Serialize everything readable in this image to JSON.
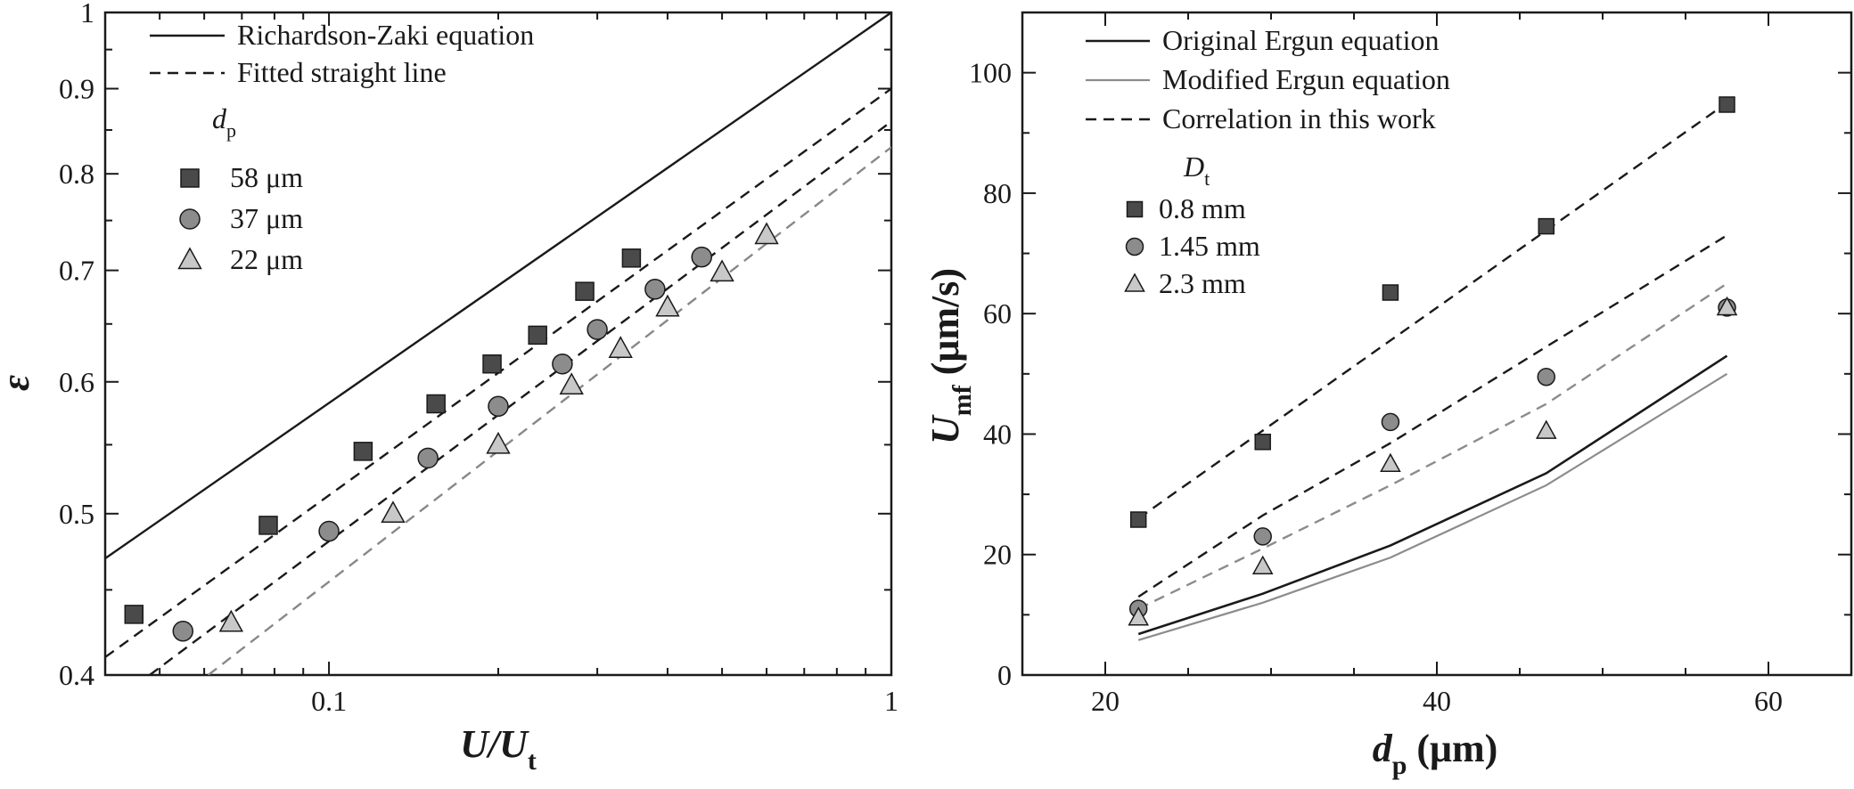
{
  "chart_data": [
    {
      "type": "scatter",
      "xscale": "log",
      "yscale": "log",
      "xlim": [
        0.04,
        1
      ],
      "ylim": [
        0.4,
        1
      ],
      "xticks": [
        "0.1",
        "1"
      ],
      "yticks": [
        "0.4",
        "0.5",
        "0.6",
        "0.7",
        "0.8",
        "0.9",
        "1"
      ],
      "xlabel": {
        "main": "U/U",
        "sub": "t"
      },
      "ylabel": "ε",
      "legend_position": "top-left",
      "legend_header": {
        "main": "d",
        "sub": "p"
      },
      "lines": [
        {
          "name": "Richardson-Zaki equation",
          "style": "solid",
          "color": "#1a1a1a",
          "x": [
            0.04,
            1
          ],
          "y": [
            0.47,
            1.0
          ]
        },
        {
          "name": "Fitted straight line",
          "style": "dashed",
          "color": "#1a1a1a",
          "x": [
            0.04,
            1
          ],
          "y": [
            0.41,
            0.9
          ]
        },
        {
          "name": "",
          "style": "dashed",
          "color": "#1a1a1a",
          "x": [
            0.048,
            1
          ],
          "y": [
            0.4,
            0.86
          ]
        },
        {
          "name": "",
          "style": "dashed",
          "color": "#888888",
          "x": [
            0.061,
            1
          ],
          "y": [
            0.4,
            0.83
          ]
        }
      ],
      "series": [
        {
          "name": "58 μm",
          "marker": "square",
          "fill": "#4a4a4a",
          "x": [
            0.045,
            0.078,
            0.115,
            0.155,
            0.195,
            0.235,
            0.285,
            0.345
          ],
          "y": [
            0.435,
            0.492,
            0.545,
            0.582,
            0.615,
            0.64,
            0.68,
            0.712
          ]
        },
        {
          "name": "37 μm",
          "marker": "circle",
          "fill": "#8c8c8c",
          "x": [
            0.055,
            0.1,
            0.15,
            0.2,
            0.26,
            0.3,
            0.38,
            0.46
          ],
          "y": [
            0.425,
            0.488,
            0.54,
            0.58,
            0.615,
            0.645,
            0.682,
            0.713
          ]
        },
        {
          "name": "22 μm",
          "marker": "triangle",
          "fill": "#c8c8c8",
          "x": [
            0.067,
            0.13,
            0.2,
            0.27,
            0.33,
            0.4,
            0.5,
            0.6
          ],
          "y": [
            0.43,
            0.5,
            0.55,
            0.597,
            0.628,
            0.665,
            0.698,
            0.735
          ]
        }
      ]
    },
    {
      "type": "scatter",
      "xlim": [
        15,
        65
      ],
      "ylim": [
        0,
        110
      ],
      "xticks": [
        20,
        40,
        60
      ],
      "yticks": [
        0,
        20,
        40,
        60,
        80,
        100
      ],
      "xlabel": {
        "main": "d",
        "sub": "p",
        "unit": " (μm)"
      },
      "ylabel": {
        "main": "U",
        "sub": "mf",
        "unit": " (μm/s)"
      },
      "legend_position": "top-left",
      "legend_header": {
        "main": "D",
        "sub": "t"
      },
      "lines": [
        {
          "name": "Original Ergun equation",
          "style": "solid",
          "color": "#1a1a1a",
          "width": 2.6,
          "x": [
            22,
            29.5,
            37.2,
            46.6,
            57.5
          ],
          "y": [
            6.8,
            13.5,
            21.5,
            33.5,
            53
          ]
        },
        {
          "name": "Modified Ergun equation",
          "style": "solid",
          "color": "#8c8c8c",
          "width": 2.2,
          "x": [
            22,
            29.5,
            37.2,
            46.6,
            57.5
          ],
          "y": [
            5.8,
            12,
            19.5,
            31.5,
            50
          ]
        },
        {
          "name": "Correlation in this work",
          "style": "dashed",
          "color": "#1a1a1a",
          "width": 2.4,
          "x": [
            22,
            57.5
          ],
          "y": [
            26,
            95
          ]
        },
        {
          "name": "",
          "style": "dashed",
          "color": "#1a1a1a",
          "width": 2.4,
          "x": [
            22,
            29.5,
            37.2,
            46.6,
            57.5
          ],
          "y": [
            13,
            26.5,
            38.5,
            54.5,
            73
          ]
        },
        {
          "name": "",
          "style": "dashed",
          "color": "#8c8c8c",
          "width": 2.4,
          "x": [
            22,
            29.5,
            37.2,
            46.6,
            57.5
          ],
          "y": [
            11,
            21,
            31.5,
            45,
            65
          ]
        }
      ],
      "series": [
        {
          "name": "0.8 mm",
          "marker": "square",
          "fill": "#4a4a4a",
          "x": [
            22,
            29.5,
            37.2,
            46.6,
            57.5
          ],
          "y": [
            25.8,
            38.7,
            63.5,
            74.5,
            94.7
          ]
        },
        {
          "name": "1.45 mm",
          "marker": "circle",
          "fill": "#8c8c8c",
          "x": [
            22,
            29.5,
            37.2,
            46.6,
            57.5
          ],
          "y": [
            11,
            23,
            42,
            49.5,
            61
          ]
        },
        {
          "name": "2.3 mm",
          "marker": "triangle",
          "fill": "#c8c8c8",
          "x": [
            22,
            29.5,
            37.2,
            46.6,
            57.5
          ],
          "y": [
            9.5,
            18,
            35,
            40.5,
            61
          ]
        }
      ]
    }
  ]
}
